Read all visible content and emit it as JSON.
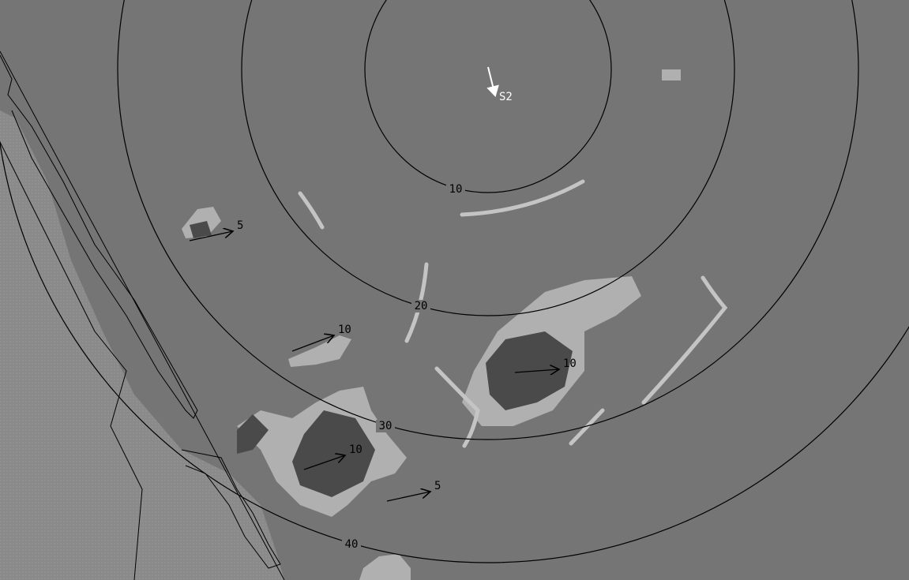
{
  "station": {
    "label": "S2"
  },
  "range_rings": [
    {
      "label": "10"
    },
    {
      "label": "20"
    },
    {
      "label": "30"
    },
    {
      "label": "40"
    }
  ],
  "vectors": [
    {
      "label": "5"
    },
    {
      "label": "10"
    },
    {
      "label": "10"
    },
    {
      "label": "10"
    },
    {
      "label": "5"
    }
  ]
}
